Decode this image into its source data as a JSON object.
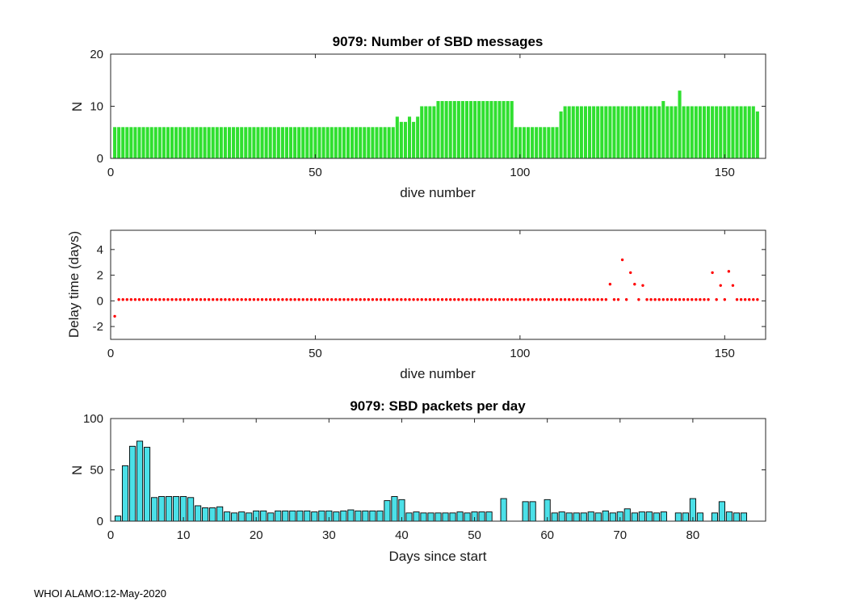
{
  "figure": {
    "background": "#ffffff",
    "footer_text": "WHOI ALAMO:12-May-2020",
    "axes_color": "#262626"
  },
  "chart_data": [
    {
      "type": "bar",
      "title": "9079: Number of SBD messages",
      "xlabel": "dive number",
      "ylabel": "N",
      "bar_color": "#30df30",
      "bar_edge_color": "none",
      "xlim": [
        0,
        160
      ],
      "ylim": [
        0,
        20
      ],
      "xticks": [
        0,
        50,
        100,
        150
      ],
      "yticks": [
        0,
        10,
        20
      ],
      "grid": false,
      "x_start": 1,
      "values": [
        6,
        6,
        6,
        6,
        6,
        6,
        6,
        6,
        6,
        6,
        6,
        6,
        6,
        6,
        6,
        6,
        6,
        6,
        6,
        6,
        6,
        6,
        6,
        6,
        6,
        6,
        6,
        6,
        6,
        6,
        6,
        6,
        6,
        6,
        6,
        6,
        6,
        6,
        6,
        6,
        6,
        6,
        6,
        6,
        6,
        6,
        6,
        6,
        6,
        6,
        6,
        6,
        6,
        6,
        6,
        6,
        6,
        6,
        6,
        6,
        6,
        6,
        6,
        6,
        6,
        6,
        6,
        6,
        6,
        8,
        7,
        7,
        8,
        7,
        8,
        10,
        10,
        10,
        10,
        11,
        11,
        11,
        11,
        11,
        11,
        11,
        11,
        11,
        11,
        11,
        11,
        11,
        11,
        11,
        11,
        11,
        11,
        11,
        6,
        6,
        6,
        6,
        6,
        6,
        6,
        6,
        6,
        6,
        6,
        9,
        10,
        10,
        10,
        10,
        10,
        10,
        10,
        10,
        10,
        10,
        10,
        10,
        10,
        10,
        10,
        10,
        10,
        10,
        10,
        10,
        10,
        10,
        10,
        10,
        11,
        10,
        10,
        10,
        13,
        10,
        10,
        10,
        10,
        10,
        10,
        10,
        10,
        10,
        10,
        10,
        10,
        10,
        10,
        10,
        10,
        10,
        10,
        9
      ]
    },
    {
      "type": "scatter",
      "title": "",
      "xlabel": "dive number",
      "ylabel": "Delay time (days)",
      "marker_color": "#ff0000",
      "xlim": [
        0,
        160
      ],
      "ylim": [
        -3,
        5.5
      ],
      "xticks": [
        0,
        50,
        100,
        150
      ],
      "yticks": [
        -2,
        0,
        2,
        4
      ],
      "grid": false,
      "n_points": 158,
      "base_y": 0.1,
      "outliers": [
        {
          "x": 1,
          "y": -1.2
        },
        {
          "x": 122,
          "y": 1.3
        },
        {
          "x": 125,
          "y": 3.2
        },
        {
          "x": 127,
          "y": 2.2
        },
        {
          "x": 128,
          "y": 1.3
        },
        {
          "x": 130,
          "y": 1.2
        },
        {
          "x": 147,
          "y": 2.2
        },
        {
          "x": 149,
          "y": 1.2
        },
        {
          "x": 151,
          "y": 2.3
        },
        {
          "x": 152,
          "y": 1.2
        }
      ]
    },
    {
      "type": "bar",
      "title": "9079: SBD packets per day",
      "xlabel": "Days since start",
      "ylabel": "N",
      "bar_color": "#4be0e8",
      "bar_edge_color": "#000000",
      "xlim": [
        0,
        90
      ],
      "ylim": [
        0,
        100
      ],
      "xticks": [
        0,
        10,
        20,
        30,
        40,
        50,
        60,
        70,
        80
      ],
      "yticks": [
        0,
        50,
        100
      ],
      "grid": false,
      "x_start": 1,
      "values": [
        5,
        54,
        73,
        78,
        72,
        23,
        24,
        24,
        24,
        24,
        23,
        15,
        13,
        13,
        14,
        9,
        8,
        9,
        8,
        10,
        10,
        8,
        10,
        10,
        10,
        10,
        10,
        9,
        10,
        10,
        9,
        10,
        11,
        10,
        10,
        10,
        10,
        20,
        24,
        21,
        8,
        9,
        8,
        8,
        8,
        8,
        8,
        9,
        8,
        9,
        9,
        9,
        0,
        22,
        0,
        0,
        19,
        19,
        0,
        21,
        8,
        9,
        8,
        8,
        8,
        9,
        8,
        10,
        8,
        9,
        12,
        8,
        9,
        9,
        8,
        9,
        0,
        8,
        8,
        22,
        8,
        0,
        8,
        19,
        9,
        8,
        8
      ]
    }
  ]
}
